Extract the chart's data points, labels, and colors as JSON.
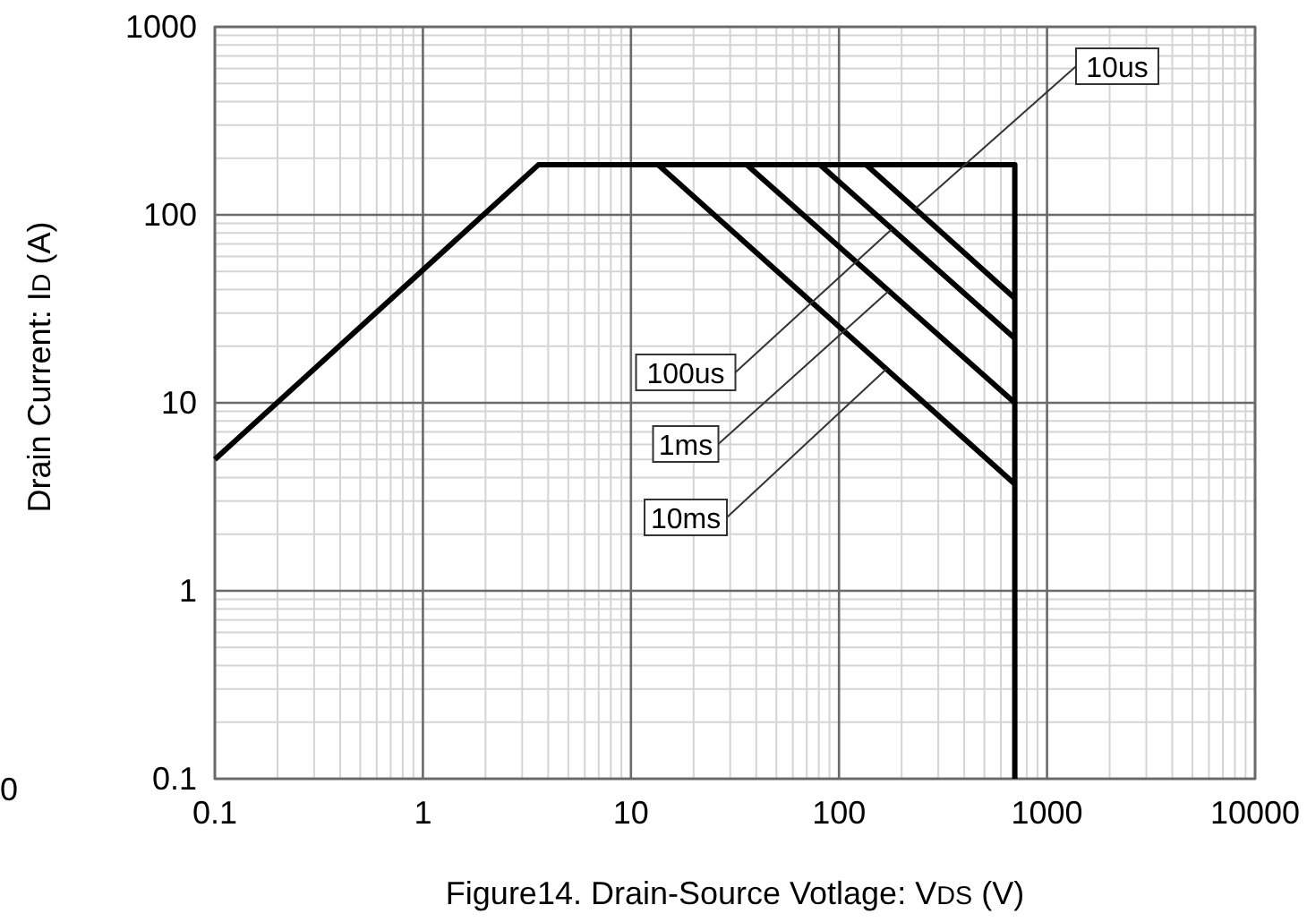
{
  "chart_data": {
    "type": "line",
    "xlabel": "Figure14. Drain-Source Votlage: V$_{DS}$ (V)",
    "ylabel": "Drain Current: I$_{D}$ (A)",
    "log": "xy",
    "xlim": [
      0.1,
      10000
    ],
    "ylim": [
      0.1,
      1000
    ],
    "xticks": [
      0.1,
      1,
      10,
      100,
      1000,
      10000
    ],
    "yticks": [
      0.1,
      1,
      10,
      100,
      1000
    ],
    "grid": true,
    "line_style": "solid",
    "series": [
      {
        "color": "#000000",
        "x": [
          0.1,
          3.6,
          700,
          700
        ],
        "values": [
          5,
          185,
          185,
          0.1
        ]
      },
      {
        "name": "10us",
        "color": "#000000",
        "x": [
          135,
          700
        ],
        "values": [
          185,
          36
        ]
      },
      {
        "name": "100us",
        "color": "#000000",
        "x": [
          81,
          700
        ],
        "values": [
          185,
          22
        ]
      },
      {
        "name": "1ms",
        "color": "#000000",
        "x": [
          36,
          700
        ],
        "values": [
          185,
          10
        ]
      },
      {
        "name": "10ms",
        "color": "#000000",
        "x": [
          13.5,
          700
        ],
        "values": [
          185,
          3.7
        ]
      }
    ],
    "annotations": [
      "0"
    ]
  }
}
